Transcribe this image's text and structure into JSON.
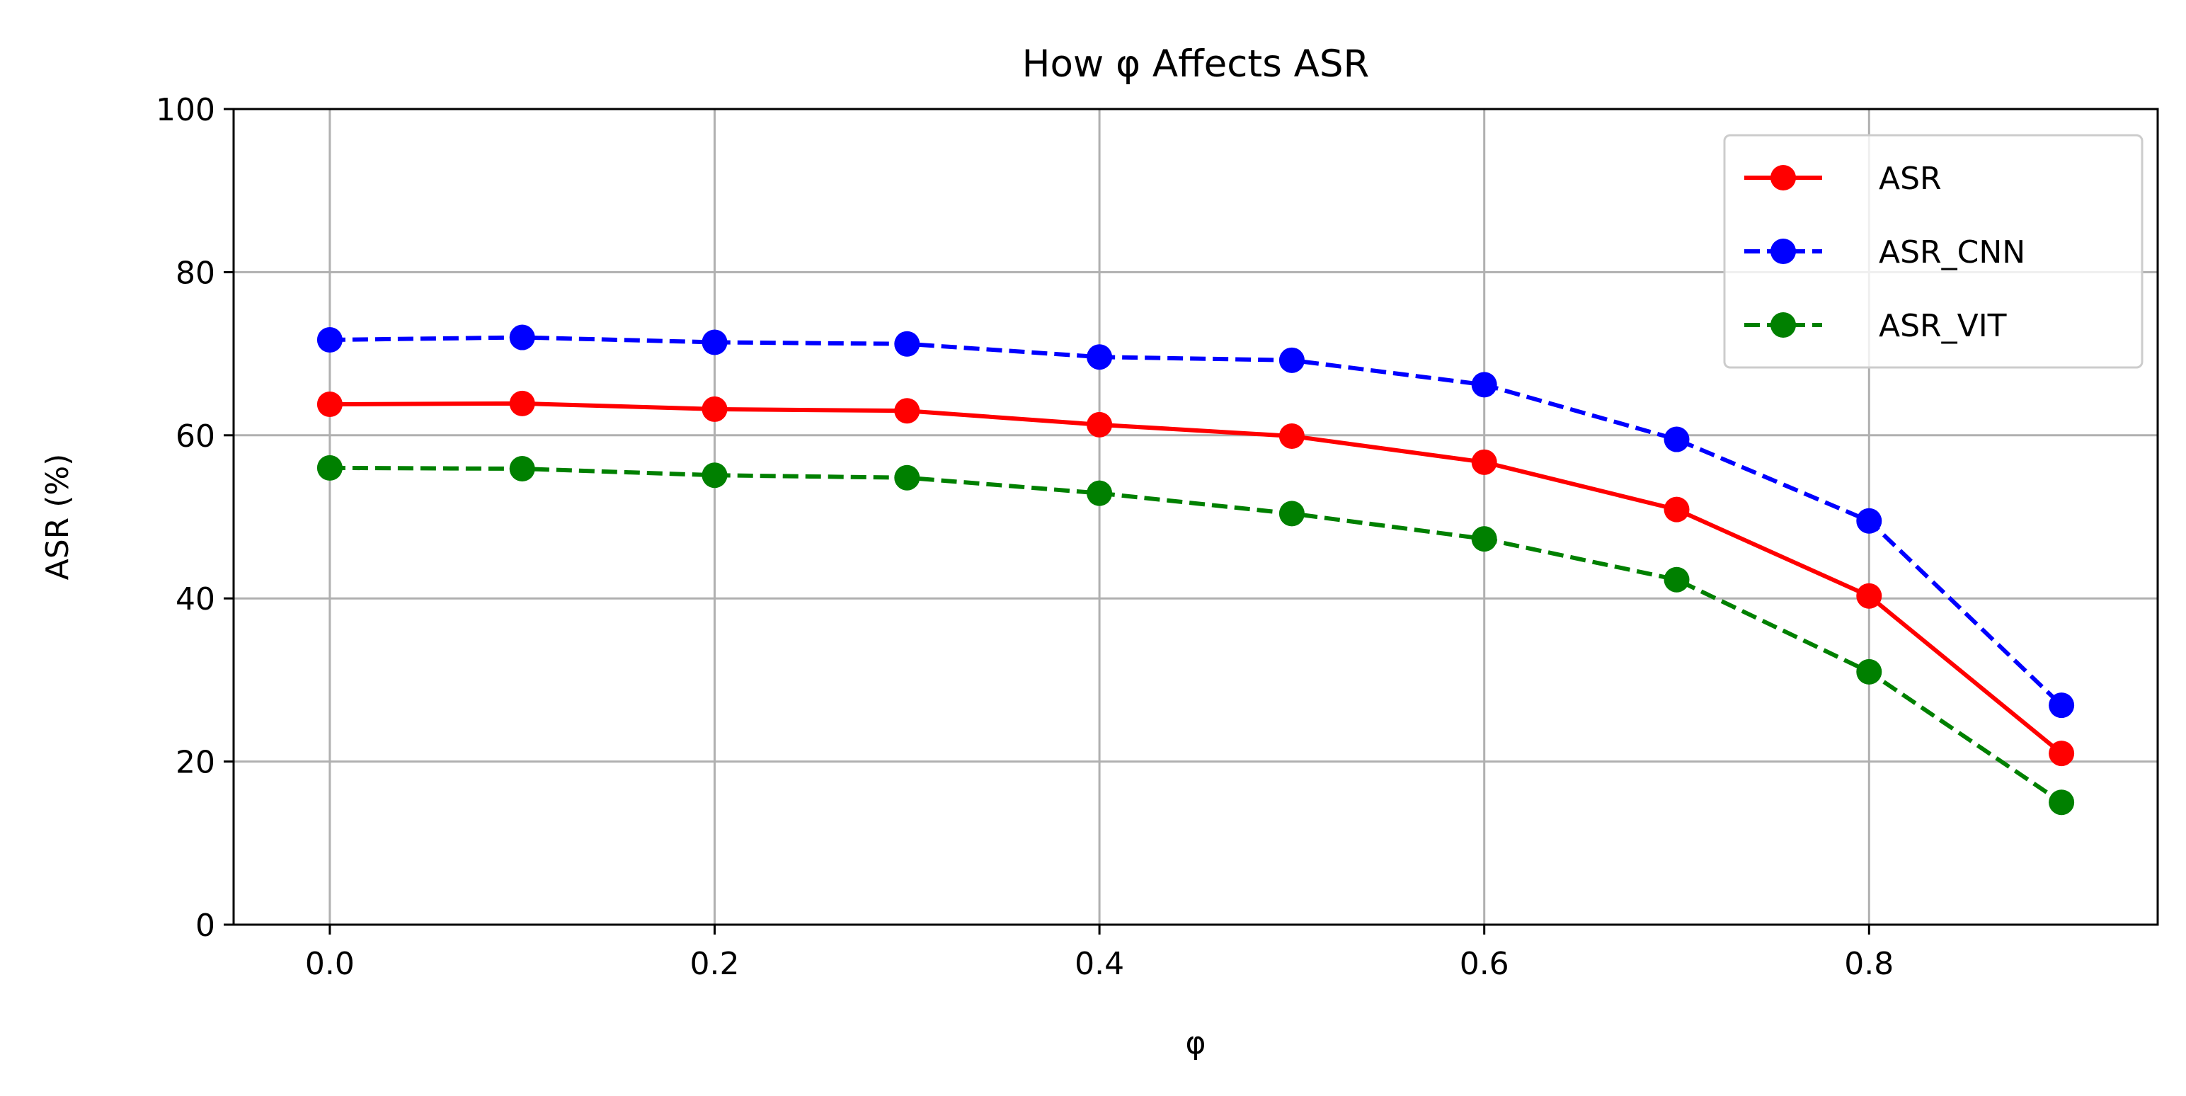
{
  "chart_data": {
    "type": "line",
    "title": "How φ Affects ASR",
    "xlabel": "φ",
    "ylabel": "ASR (%)",
    "x": [
      0.0,
      0.1,
      0.2,
      0.3,
      0.4,
      0.5,
      0.6,
      0.7,
      0.8,
      0.9
    ],
    "xlim": [
      -0.05,
      0.95
    ],
    "ylim": [
      0,
      100
    ],
    "xticks": [
      0.0,
      0.2,
      0.4,
      0.6,
      0.8
    ],
    "xtick_labels": [
      "0.0",
      "0.2",
      "0.4",
      "0.6",
      "0.8"
    ],
    "yticks": [
      0,
      20,
      40,
      60,
      80,
      100
    ],
    "ytick_labels": [
      "0",
      "20",
      "40",
      "60",
      "80",
      "100"
    ],
    "grid": true,
    "legend_position": "top-right",
    "series": [
      {
        "name": "ASR",
        "color": "#ff0000",
        "line_style": "solid",
        "marker": "circle",
        "values": [
          63.8,
          63.9,
          63.2,
          63.0,
          61.3,
          59.9,
          56.7,
          50.9,
          40.3,
          21.0
        ]
      },
      {
        "name": "ASR_CNN",
        "color": "#0000ff",
        "line_style": "dashed",
        "marker": "circle",
        "values": [
          71.7,
          72.0,
          71.4,
          71.2,
          69.6,
          69.2,
          66.2,
          59.5,
          49.5,
          26.9
        ]
      },
      {
        "name": "ASR_VIT",
        "color": "#008000",
        "line_style": "dashed",
        "marker": "circle",
        "values": [
          56.0,
          55.9,
          55.1,
          54.8,
          52.9,
          50.4,
          47.3,
          42.3,
          31.0,
          15.0
        ]
      }
    ]
  }
}
